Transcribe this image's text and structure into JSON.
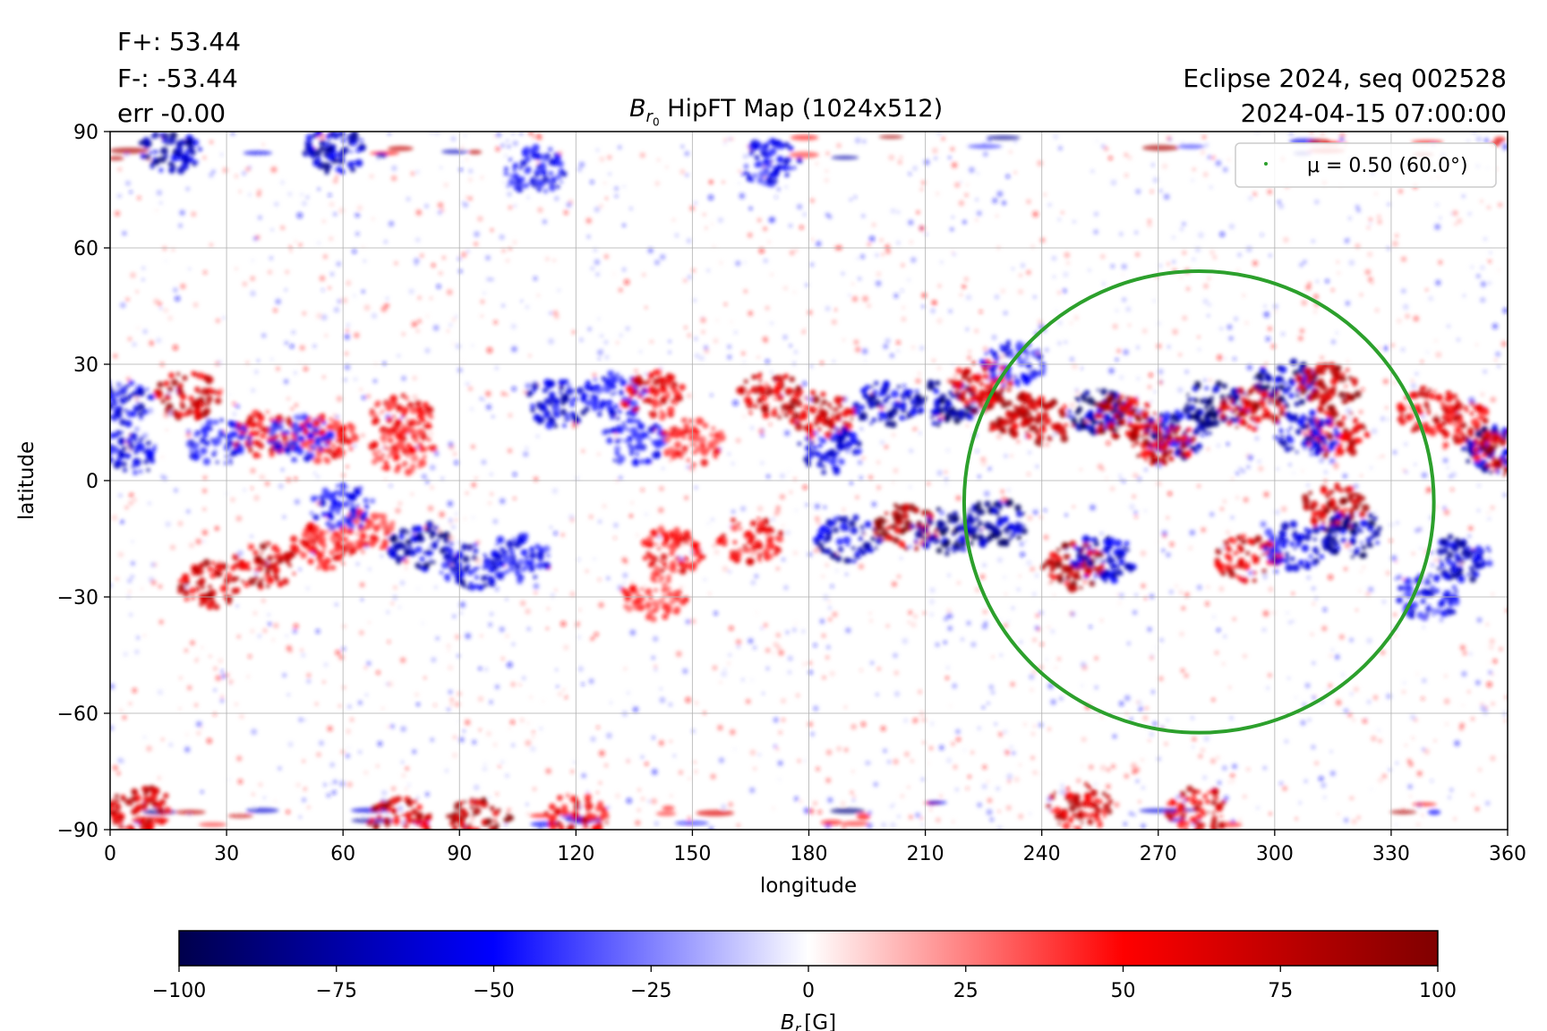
{
  "header": {
    "flux_plus": "F+: 53.44",
    "flux_minus": "F-: -53.44",
    "error": "err -0.00",
    "title": "HipFT Map (1024x512)",
    "title_symbol": "B",
    "title_subscript": "r",
    "title_subsubscript": "0",
    "source": "Eclipse 2024, seq 002528",
    "timestamp": "2024-04-15 07:00:00"
  },
  "colorbar": {
    "label": "B_r [G]",
    "label_symbol": "B",
    "label_subscript": "r",
    "label_unit": "[G]",
    "range": [
      -100,
      100
    ],
    "ticks": [
      "−100",
      "−75",
      "−50",
      "−25",
      "0",
      "25",
      "50",
      "75",
      "100"
    ],
    "colormap": [
      "#00004c",
      "#0000ff",
      "#ffffff",
      "#ff0000",
      "#800000"
    ]
  },
  "legend": {
    "label": "μ = 0.50 (60.0°)",
    "marker_color": "#2ca02c"
  },
  "chart_data": {
    "type": "heatmap",
    "title": "B_r0 HipFT Map (1024x512)",
    "xlabel": "longitude",
    "ylabel": "latitude",
    "xlim": [
      0,
      360
    ],
    "ylim": [
      -90,
      90
    ],
    "xticks": [
      "0",
      "30",
      "60",
      "90",
      "120",
      "150",
      "180",
      "210",
      "240",
      "270",
      "300",
      "330",
      "360"
    ],
    "yticks": [
      "90",
      "60",
      "30",
      "0",
      "−30",
      "−60",
      "−90"
    ],
    "grid": true,
    "legend_position": "top-right",
    "value_range": [
      -100,
      100
    ],
    "units": "G",
    "contour": {
      "name": "μ = 0.50 (60.0°)",
      "color": "#2ca02c",
      "center_longitude": 280,
      "center_latitude": -5.5,
      "longitude_range": [
        220,
        341
      ],
      "latitude_range": [
        -65,
        54
      ]
    },
    "regions": [
      {
        "lon": 20,
        "lat": 22,
        "value": 85
      },
      {
        "lon": 40,
        "lat": 12,
        "value": 70
      },
      {
        "lon": 55,
        "lat": 11,
        "value": 60
      },
      {
        "lon": 75,
        "lat": 16,
        "value": 60
      },
      {
        "lon": 75,
        "lat": 8,
        "value": 55
      },
      {
        "lon": 3,
        "lat": 20,
        "value": -75
      },
      {
        "lon": 4,
        "lat": 7,
        "value": -70
      },
      {
        "lon": 28,
        "lat": 10,
        "value": -60
      },
      {
        "lon": 49,
        "lat": 11,
        "value": -55
      },
      {
        "lon": 40,
        "lat": -22,
        "value": 85
      },
      {
        "lon": 25,
        "lat": -27,
        "value": 80
      },
      {
        "lon": 55,
        "lat": -17,
        "value": 60
      },
      {
        "lon": 65,
        "lat": -13,
        "value": 55
      },
      {
        "lon": 80,
        "lat": -17,
        "value": -85
      },
      {
        "lon": 93,
        "lat": -22,
        "value": -75
      },
      {
        "lon": 60,
        "lat": -7,
        "value": -60
      },
      {
        "lon": 105,
        "lat": -20,
        "value": -60
      },
      {
        "lon": 115,
        "lat": 20,
        "value": -75
      },
      {
        "lon": 130,
        "lat": 22,
        "value": -60
      },
      {
        "lon": 135,
        "lat": 10,
        "value": -55
      },
      {
        "lon": 140,
        "lat": 22,
        "value": 70
      },
      {
        "lon": 150,
        "lat": 10,
        "value": 55
      },
      {
        "lon": 145,
        "lat": -18,
        "value": 60
      },
      {
        "lon": 165,
        "lat": -15,
        "value": 65
      },
      {
        "lon": 140,
        "lat": -30,
        "value": 50
      },
      {
        "lon": 170,
        "lat": 22,
        "value": 80
      },
      {
        "lon": 183,
        "lat": 17,
        "value": 85
      },
      {
        "lon": 185,
        "lat": 8,
        "value": -70
      },
      {
        "lon": 200,
        "lat": 20,
        "value": -80
      },
      {
        "lon": 215,
        "lat": 20,
        "value": -100
      },
      {
        "lon": 205,
        "lat": -12,
        "value": 100
      },
      {
        "lon": 215,
        "lat": -13,
        "value": -100
      },
      {
        "lon": 228,
        "lat": -11,
        "value": -100
      },
      {
        "lon": 190,
        "lat": -15,
        "value": -80
      },
      {
        "lon": 231,
        "lat": 18,
        "value": 100
      },
      {
        "lon": 240,
        "lat": 15,
        "value": 85
      },
      {
        "lon": 225,
        "lat": 25,
        "value": 80
      },
      {
        "lon": 233,
        "lat": 30,
        "value": -60
      },
      {
        "lon": 255,
        "lat": 18,
        "value": -95
      },
      {
        "lon": 261,
        "lat": 16,
        "value": 100
      },
      {
        "lon": 275,
        "lat": 12,
        "value": -80
      },
      {
        "lon": 271,
        "lat": 10,
        "value": 90
      },
      {
        "lon": 285,
        "lat": 20,
        "value": -100
      },
      {
        "lon": 294,
        "lat": 19,
        "value": 90
      },
      {
        "lon": 303,
        "lat": 25,
        "value": -100
      },
      {
        "lon": 314,
        "lat": 24,
        "value": 100
      },
      {
        "lon": 316,
        "lat": 12,
        "value": 85
      },
      {
        "lon": 308,
        "lat": 12,
        "value": -70
      },
      {
        "lon": 248,
        "lat": -22,
        "value": 100
      },
      {
        "lon": 256,
        "lat": -20,
        "value": -80
      },
      {
        "lon": 293,
        "lat": -20,
        "value": 80
      },
      {
        "lon": 315,
        "lat": -7,
        "value": 90
      },
      {
        "lon": 320,
        "lat": -14,
        "value": -90
      },
      {
        "lon": 305,
        "lat": -17,
        "value": -70
      },
      {
        "lon": 340,
        "lat": 18,
        "value": 70
      },
      {
        "lon": 349,
        "lat": 14,
        "value": 75
      },
      {
        "lon": 357,
        "lat": 8,
        "value": -85
      },
      {
        "lon": 360,
        "lat": 7,
        "value": 90
      },
      {
        "lon": 348,
        "lat": -20,
        "value": -80
      },
      {
        "lon": 340,
        "lat": -30,
        "value": -60
      },
      {
        "lon": 58,
        "lat": 85,
        "value": -80
      },
      {
        "lon": 15,
        "lat": 85,
        "value": -85
      },
      {
        "lon": 110,
        "lat": 80,
        "value": -60
      },
      {
        "lon": 170,
        "lat": 82,
        "value": -60
      },
      {
        "lon": 95,
        "lat": -88,
        "value": 100
      },
      {
        "lon": 75,
        "lat": -88,
        "value": 85
      },
      {
        "lon": 250,
        "lat": -84,
        "value": 80
      },
      {
        "lon": 280,
        "lat": -85,
        "value": 75
      },
      {
        "lon": 8,
        "lat": -85,
        "value": 80
      },
      {
        "lon": 120,
        "lat": -87,
        "value": 70
      }
    ]
  }
}
